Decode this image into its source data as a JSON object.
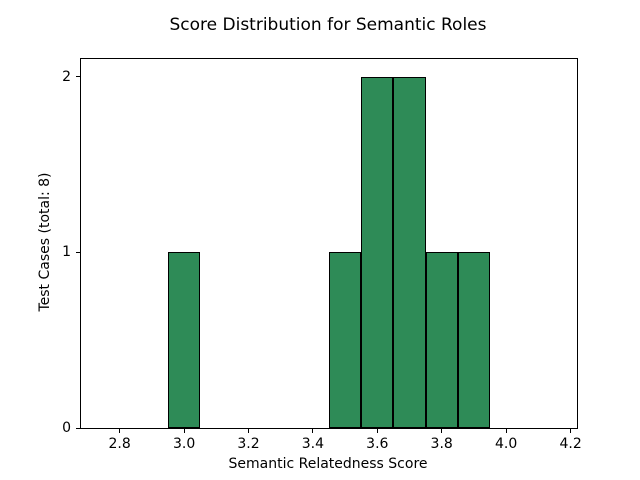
{
  "chart_data": {
    "type": "bar",
    "title": "Score Distribution for Semantic Roles",
    "xlabel": "Semantic Relatedness Score",
    "ylabel": "Test Cases (total: 8)",
    "total_test_cases": 8,
    "bin_width": 0.1,
    "bars": [
      {
        "x0": 2.95,
        "x1": 3.05,
        "count": 1
      },
      {
        "x0": 3.45,
        "x1": 3.55,
        "count": 1
      },
      {
        "x0": 3.55,
        "x1": 3.65,
        "count": 2
      },
      {
        "x0": 3.65,
        "x1": 3.75,
        "count": 2
      },
      {
        "x0": 3.75,
        "x1": 3.85,
        "count": 1
      },
      {
        "x0": 3.85,
        "x1": 3.95,
        "count": 1
      }
    ],
    "x_tick_labels": [
      "2.8",
      "3.0",
      "3.2",
      "3.4",
      "3.6",
      "3.8",
      "4.0",
      "4.2"
    ],
    "x_tick_values": [
      2.8,
      3.0,
      3.2,
      3.4,
      3.6,
      3.8,
      4.0,
      4.2
    ],
    "y_tick_labels": [
      "0",
      "1",
      "2"
    ],
    "y_tick_values": [
      0,
      1,
      2
    ],
    "xlim": [
      2.68,
      4.22
    ],
    "ylim": [
      0,
      2.1
    ],
    "bar_color": "#2E8B57",
    "bar_edge_color": "#000000",
    "grid": false,
    "legend": false
  }
}
